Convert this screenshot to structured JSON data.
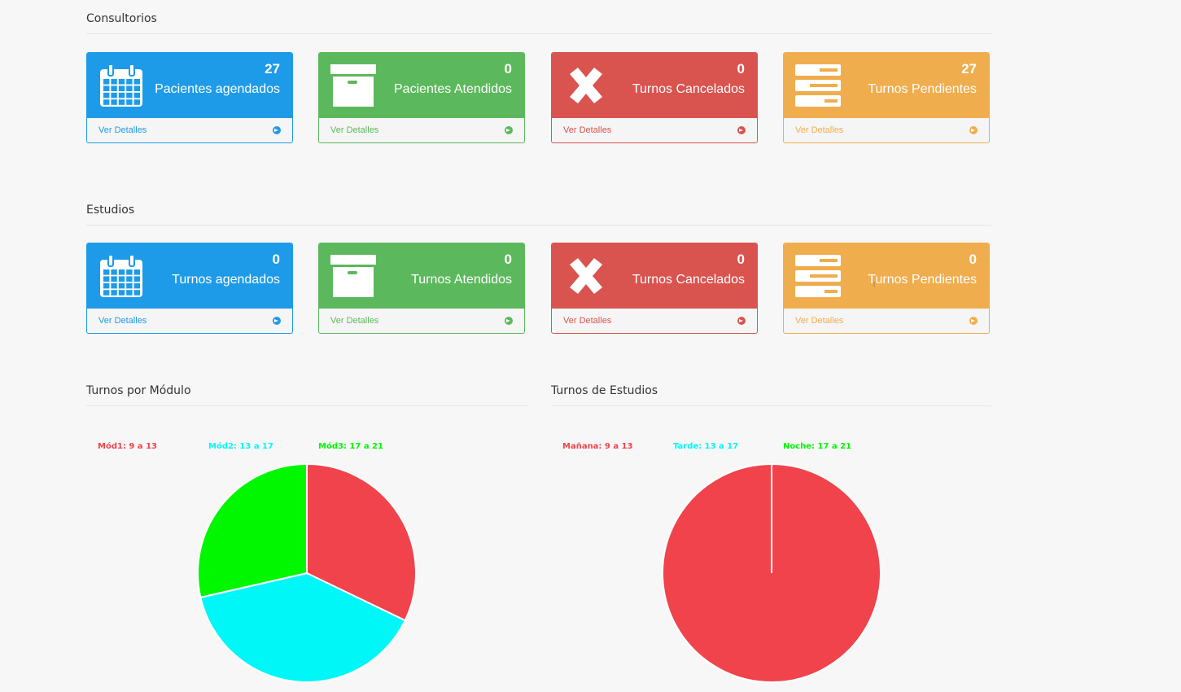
{
  "consultorios": {
    "title": "Consultorios",
    "cards": [
      {
        "count": "27",
        "label": "Pacientes agendados",
        "more": "Ver Detalles",
        "color": "blue",
        "icon": "calendar-icon"
      },
      {
        "count": "0",
        "label": "Pacientes Atendidos",
        "more": "Ver Detalles",
        "color": "green",
        "icon": "archive-icon"
      },
      {
        "count": "0",
        "label": "Turnos Cancelados",
        "more": "Ver Detalles",
        "color": "red",
        "icon": "times-icon"
      },
      {
        "count": "27",
        "label": "Turnos Pendientes",
        "more": "Ver Detalles",
        "color": "orange",
        "icon": "tasks-icon"
      }
    ]
  },
  "estudios": {
    "title": "Estudios",
    "cards": [
      {
        "count": "0",
        "label": "Turnos agendados",
        "more": "Ver Detalles",
        "color": "blue",
        "icon": "calendar-icon"
      },
      {
        "count": "0",
        "label": "Turnos Atendidos",
        "more": "Ver Detalles",
        "color": "green",
        "icon": "archive-icon"
      },
      {
        "count": "0",
        "label": "Turnos Cancelados",
        "more": "Ver Detalles",
        "color": "red",
        "icon": "times-icon"
      },
      {
        "count": "0",
        "label": "Turnos Pendientes",
        "more": "Ver Detalles",
        "color": "orange",
        "icon": "tasks-icon"
      }
    ]
  },
  "colors": {
    "blue": "#1e9be8",
    "green": "#5cb85c",
    "red": "#d9534f",
    "orange": "#f0ad4e",
    "pie_red": "#f0434b",
    "pie_cyan": "#00f7f7",
    "pie_green": "#00f700"
  },
  "chart_data": [
    {
      "type": "pie",
      "title": "Turnos por Módulo",
      "categories": [
        "Mód1: 9 a 13",
        "Mód2: 13 a 17",
        "Mód3: 17 a 21"
      ],
      "values": [
        9,
        11,
        8
      ],
      "colors": [
        "#f0434b",
        "#00f7f7",
        "#00f700"
      ]
    },
    {
      "type": "pie",
      "title": "Turnos de Estudios",
      "categories": [
        "Mañana: 9 a 13",
        "Tarde: 13 a 17",
        "Noche: 17 a 21"
      ],
      "values": [
        1,
        0,
        0
      ],
      "colors": [
        "#f0434b",
        "#00f7f7",
        "#00f700"
      ]
    }
  ]
}
